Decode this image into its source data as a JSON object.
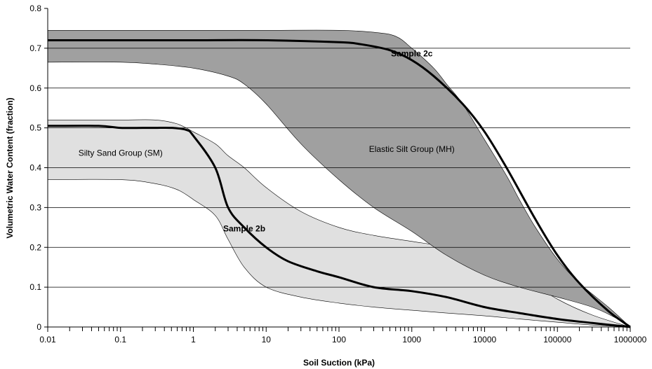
{
  "chart_data": {
    "type": "line",
    "title": "",
    "xlabel": "Soil Suction (kPa)",
    "ylabel": "Volumetric Water Content (fraction)",
    "xscale": "log",
    "xlim": [
      0.01,
      1000000
    ],
    "ylim": [
      0,
      0.8
    ],
    "grid": "horizontal",
    "x_ticks": [
      {
        "value": 0.01,
        "label": "0.01"
      },
      {
        "value": 0.1,
        "label": "0.1"
      },
      {
        "value": 1,
        "label": "1"
      },
      {
        "value": 10,
        "label": "10"
      },
      {
        "value": 100,
        "label": "100"
      },
      {
        "value": 1000,
        "label": "1000"
      },
      {
        "value": 10000,
        "label": "10000"
      },
      {
        "value": 100000,
        "label": "100000"
      },
      {
        "value": 1000000,
        "label": "1000000"
      }
    ],
    "y_ticks": [
      {
        "value": 0,
        "label": "0"
      },
      {
        "value": 0.1,
        "label": "0.1"
      },
      {
        "value": 0.2,
        "label": "0.2"
      },
      {
        "value": 0.3,
        "label": "0.3"
      },
      {
        "value": 0.4,
        "label": "0.4"
      },
      {
        "value": 0.5,
        "label": "0.5"
      },
      {
        "value": 0.6,
        "label": "0.6"
      },
      {
        "value": 0.7,
        "label": "0.7"
      },
      {
        "value": 0.8,
        "label": "0.8"
      }
    ],
    "bands": [
      {
        "name": "Silty Sand Group (SM)",
        "color": "#e0e0e0",
        "upper": [
          [
            0.01,
            0.52
          ],
          [
            0.1,
            0.52
          ],
          [
            0.3,
            0.52
          ],
          [
            0.6,
            0.51
          ],
          [
            1,
            0.49
          ],
          [
            2,
            0.46
          ],
          [
            3,
            0.43
          ],
          [
            5,
            0.4
          ],
          [
            10,
            0.35
          ],
          [
            30,
            0.29
          ],
          [
            100,
            0.25
          ],
          [
            300,
            0.23
          ],
          [
            1000,
            0.215
          ],
          [
            3000,
            0.2
          ],
          [
            10000,
            0.17
          ],
          [
            30000,
            0.13
          ],
          [
            100000,
            0.07
          ],
          [
            300000,
            0.03
          ],
          [
            1000000,
            0.0
          ]
        ],
        "lower": [
          [
            0.01,
            0.37
          ],
          [
            0.1,
            0.37
          ],
          [
            0.3,
            0.36
          ],
          [
            0.6,
            0.345
          ],
          [
            1,
            0.32
          ],
          [
            2,
            0.28
          ],
          [
            3,
            0.22
          ],
          [
            5,
            0.15
          ],
          [
            10,
            0.1
          ],
          [
            30,
            0.075
          ],
          [
            100,
            0.06
          ],
          [
            300,
            0.05
          ],
          [
            1000,
            0.042
          ],
          [
            3000,
            0.035
          ],
          [
            10000,
            0.028
          ],
          [
            30000,
            0.02
          ],
          [
            100000,
            0.012
          ],
          [
            300000,
            0.005
          ],
          [
            1000000,
            0.0
          ]
        ]
      },
      {
        "name": "Elastic Silt Group (MH)",
        "color": "#a0a0a0",
        "upper": [
          [
            0.01,
            0.745
          ],
          [
            1,
            0.745
          ],
          [
            10,
            0.745
          ],
          [
            100,
            0.745
          ],
          [
            300,
            0.74
          ],
          [
            600,
            0.73
          ],
          [
            1000,
            0.7
          ],
          [
            2000,
            0.65
          ],
          [
            3000,
            0.61
          ],
          [
            5000,
            0.56
          ],
          [
            10000,
            0.47
          ],
          [
            20000,
            0.38
          ],
          [
            30000,
            0.32
          ],
          [
            50000,
            0.25
          ],
          [
            100000,
            0.17
          ],
          [
            200000,
            0.11
          ],
          [
            500000,
            0.05
          ],
          [
            1000000,
            0.0
          ]
        ],
        "lower": [
          [
            0.01,
            0.665
          ],
          [
            0.1,
            0.665
          ],
          [
            0.3,
            0.66
          ],
          [
            1,
            0.65
          ],
          [
            3,
            0.63
          ],
          [
            5,
            0.61
          ],
          [
            10,
            0.56
          ],
          [
            30,
            0.46
          ],
          [
            100,
            0.37
          ],
          [
            300,
            0.3
          ],
          [
            1000,
            0.24
          ],
          [
            3000,
            0.18
          ],
          [
            10000,
            0.13
          ],
          [
            30000,
            0.1
          ],
          [
            100000,
            0.075
          ],
          [
            300000,
            0.05
          ],
          [
            600000,
            0.025
          ],
          [
            1000000,
            0.0
          ]
        ]
      }
    ],
    "series": [
      {
        "name": "Sample 2c",
        "color": "#000000",
        "points": [
          [
            0.01,
            0.72
          ],
          [
            0.1,
            0.72
          ],
          [
            1,
            0.72
          ],
          [
            10,
            0.72
          ],
          [
            100,
            0.715
          ],
          [
            200,
            0.71
          ],
          [
            500,
            0.695
          ],
          [
            1000,
            0.67
          ],
          [
            2000,
            0.63
          ],
          [
            5000,
            0.56
          ],
          [
            10000,
            0.49
          ],
          [
            20000,
            0.4
          ],
          [
            50000,
            0.27
          ],
          [
            100000,
            0.18
          ],
          [
            200000,
            0.11
          ],
          [
            500000,
            0.04
          ],
          [
            1000000,
            0.0
          ]
        ]
      },
      {
        "name": "Sample 2b",
        "color": "#000000",
        "points": [
          [
            0.01,
            0.505
          ],
          [
            0.05,
            0.505
          ],
          [
            0.1,
            0.5
          ],
          [
            0.2,
            0.5
          ],
          [
            0.3,
            0.5
          ],
          [
            0.5,
            0.5
          ],
          [
            0.8,
            0.495
          ],
          [
            1,
            0.48
          ],
          [
            2,
            0.4
          ],
          [
            3,
            0.3
          ],
          [
            5,
            0.25
          ],
          [
            10,
            0.2
          ],
          [
            20,
            0.165
          ],
          [
            50,
            0.14
          ],
          [
            100,
            0.125
          ],
          [
            300,
            0.1
          ],
          [
            1000,
            0.09
          ],
          [
            3000,
            0.075
          ],
          [
            10000,
            0.05
          ],
          [
            30000,
            0.035
          ],
          [
            100000,
            0.02
          ],
          [
            300000,
            0.01
          ],
          [
            1000000,
            0.0
          ]
        ]
      }
    ],
    "annotations": [
      {
        "text": "Sample 2c",
        "x": 1000,
        "y": 0.68,
        "bold": true
      },
      {
        "text": "Elastic Silt Group (MH)",
        "x": 1000,
        "y": 0.44,
        "bold": false
      },
      {
        "text": "Silty Sand Group (SM)",
        "x": 0.1,
        "y": 0.43,
        "bold": false
      },
      {
        "text": "Sample 2b",
        "x": 5,
        "y": 0.24,
        "bold": true
      }
    ]
  }
}
